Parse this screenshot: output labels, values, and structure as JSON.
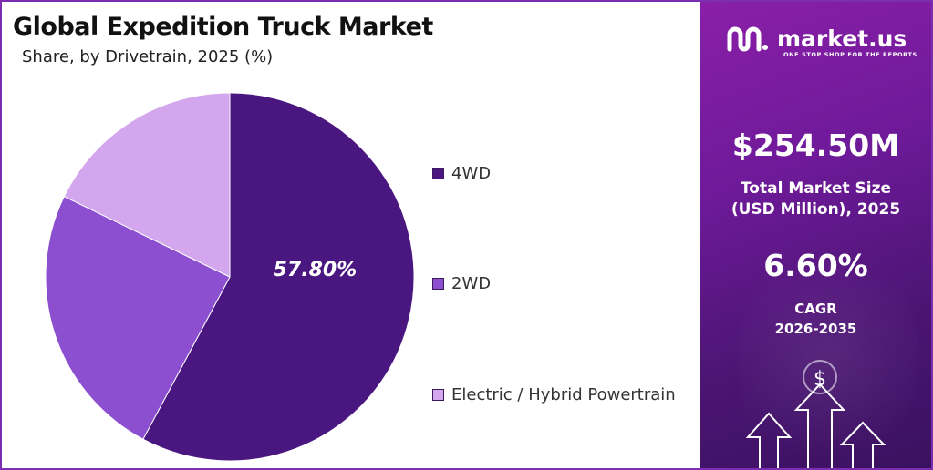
{
  "header": {
    "title": "Global Expedition Truck Market",
    "subtitle": "Share, by Drivetrain, 2025 (%)"
  },
  "chart_data": {
    "type": "pie",
    "title": "Global Expedition Truck Market",
    "subtitle": "Share, by Drivetrain, 2025 (%)",
    "categories": [
      "4WD",
      "2WD",
      "Electric / Hybrid Powertrain"
    ],
    "values": [
      57.8,
      24.4,
      17.8
    ],
    "colors": [
      "#4a1680",
      "#8b4fd0",
      "#d4a6ee"
    ],
    "data_labels": [
      "57.80%",
      "",
      ""
    ],
    "legend_position": "right"
  },
  "brand": {
    "name": "market.us",
    "tagline": "ONE STOP SHOP FOR THE REPORTS"
  },
  "stats": {
    "market_size": "$254.50M",
    "market_size_label_1": "Total Market Size",
    "market_size_label_2": "(USD Million), 2025",
    "cagr": "6.60%",
    "cagr_label_1": "CAGR",
    "cagr_label_2": "2026-2035"
  },
  "icons": [
    "logo-icon",
    "dollar-icon",
    "up-arrow-icon"
  ]
}
